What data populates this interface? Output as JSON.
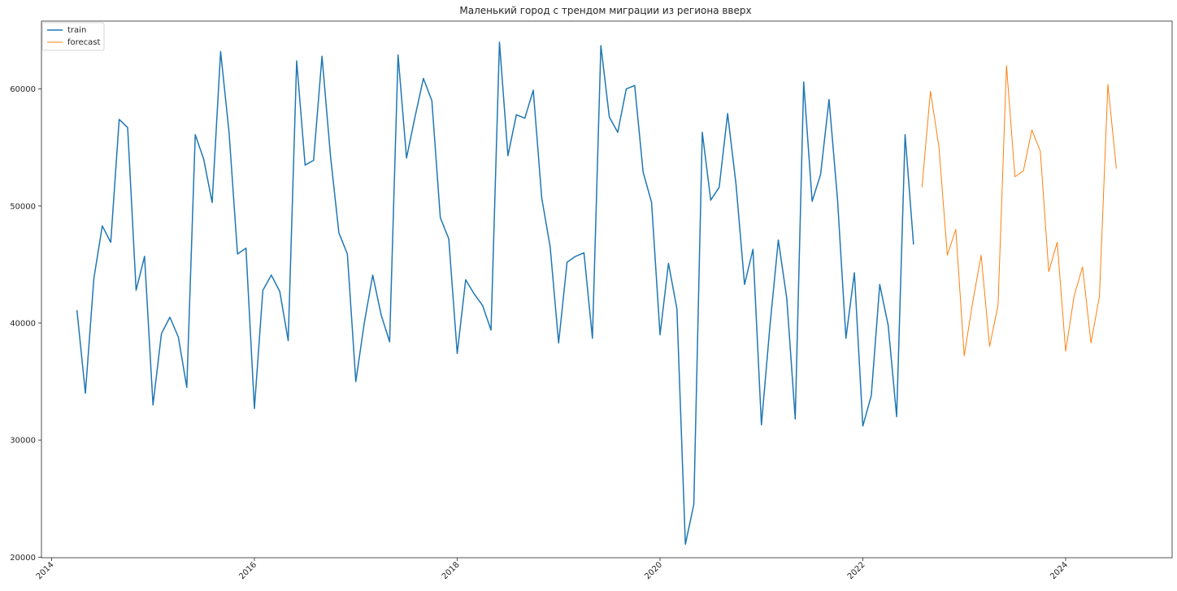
{
  "chart_data": {
    "type": "line",
    "title": "Маленький город с трендом миграции из региона вверх",
    "xlabel": "",
    "ylabel": "",
    "xlim": [
      2013.9,
      2025.05
    ],
    "ylim": [
      19950,
      65800
    ],
    "x_ticks": [
      2014,
      2016,
      2018,
      2020,
      2022,
      2024
    ],
    "x_tick_labels": [
      "2014",
      "2016",
      "2018",
      "2020",
      "2022",
      "2024"
    ],
    "y_ticks": [
      20000,
      30000,
      40000,
      50000,
      60000
    ],
    "y_tick_labels": [
      "20000",
      "30000",
      "40000",
      "50000",
      "60000"
    ],
    "grid": false,
    "legend_position": "top-left",
    "colors": {
      "train": "#1f77b4",
      "forecast": "#ff7f0e"
    },
    "series": [
      {
        "name": "train",
        "start": [
          2014,
          4
        ],
        "values": [
          41100,
          34000,
          43800,
          48300,
          46900,
          57400,
          56700,
          42800,
          45700,
          33000,
          39100,
          40500,
          38800,
          34500,
          56100,
          54000,
          50300,
          63200,
          56300,
          45900,
          46400,
          32700,
          42800,
          44100,
          42700,
          38500,
          62400,
          53500,
          53900,
          62800,
          54300,
          47700,
          45900,
          35000,
          40000,
          44100,
          40700,
          38400,
          62900,
          54100,
          57600,
          60900,
          59000,
          49000,
          47200,
          37400,
          43700,
          42500,
          41500,
          39400,
          64000,
          54300,
          57800,
          57500,
          59900,
          50700,
          46500,
          38300,
          45200,
          45700,
          46000,
          38700,
          63700,
          57600,
          56300,
          60000,
          60300,
          52900,
          50300,
          39000,
          45100,
          41200,
          21100,
          24500,
          56300,
          50500,
          51600,
          57900,
          51800,
          43300,
          46300,
          31300,
          39700,
          47100,
          42100,
          31800,
          60600,
          50400,
          52700,
          59100,
          50600,
          38700,
          44300,
          31200,
          33800,
          43300,
          39800,
          32000,
          56100,
          46700
        ]
      },
      {
        "name": "forecast",
        "start": [
          2022,
          8
        ],
        "values": [
          51600,
          59800,
          55100,
          45800,
          48000,
          37200,
          41800,
          45800,
          38000,
          41500,
          62000,
          52500,
          53000,
          56500,
          54700,
          44400,
          46900,
          37600,
          42300,
          44800,
          38300,
          42300,
          60400,
          53200
        ]
      }
    ]
  }
}
